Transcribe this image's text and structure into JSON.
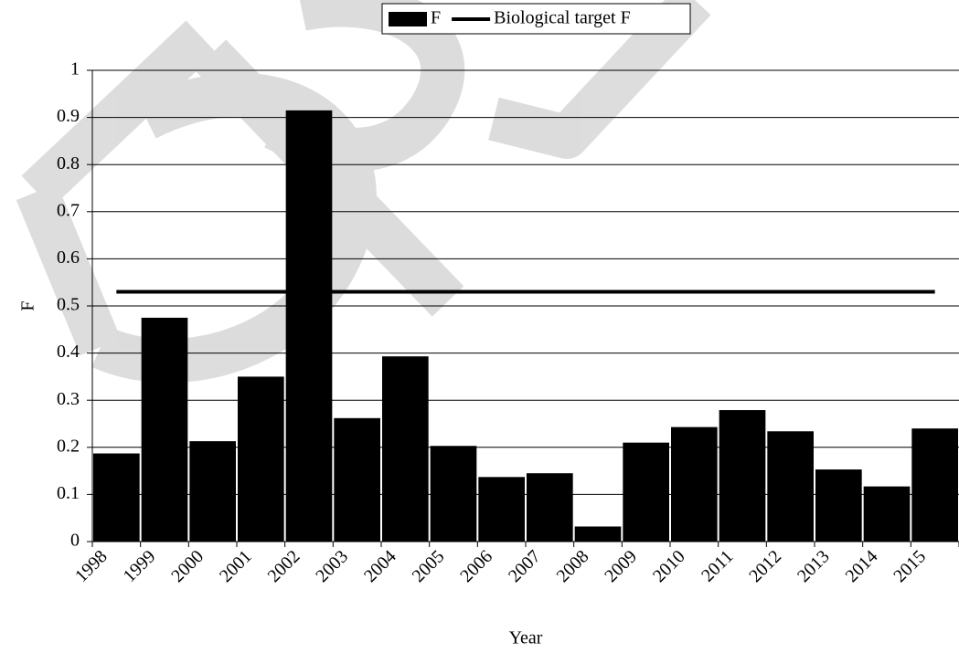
{
  "chart_data": {
    "type": "bar",
    "x_label": "Year",
    "y_label": "F",
    "categories": [
      "1998",
      "1999",
      "2000",
      "2001",
      "2002",
      "2003",
      "2004",
      "2005",
      "2006",
      "2007",
      "2008",
      "2009",
      "2010",
      "2011",
      "2012",
      "2013",
      "2014",
      "2015"
    ],
    "series": [
      {
        "name": "F",
        "color": "#000000",
        "type": "bar",
        "values": [
          0.187,
          0.475,
          0.213,
          0.35,
          0.915,
          0.262,
          0.393,
          0.203,
          0.137,
          0.145,
          0.032,
          0.21,
          0.243,
          0.279,
          0.234,
          0.153,
          0.117,
          0.24
        ]
      },
      {
        "name": "Biological target F",
        "color": "#000000",
        "type": "line",
        "values": [
          0.53,
          0.53,
          0.53,
          0.53,
          0.53,
          0.53,
          0.53,
          0.53,
          0.53,
          0.53,
          0.53,
          0.53,
          0.53,
          0.53,
          0.53,
          0.53,
          0.53,
          0.53
        ]
      }
    ],
    "ylim": [
      0,
      1
    ],
    "yticks": [
      0,
      0.1,
      0.2,
      0.3,
      0.4,
      0.5,
      0.6,
      0.7,
      0.8,
      0.9,
      1
    ],
    "grid": true,
    "legend": "top"
  }
}
